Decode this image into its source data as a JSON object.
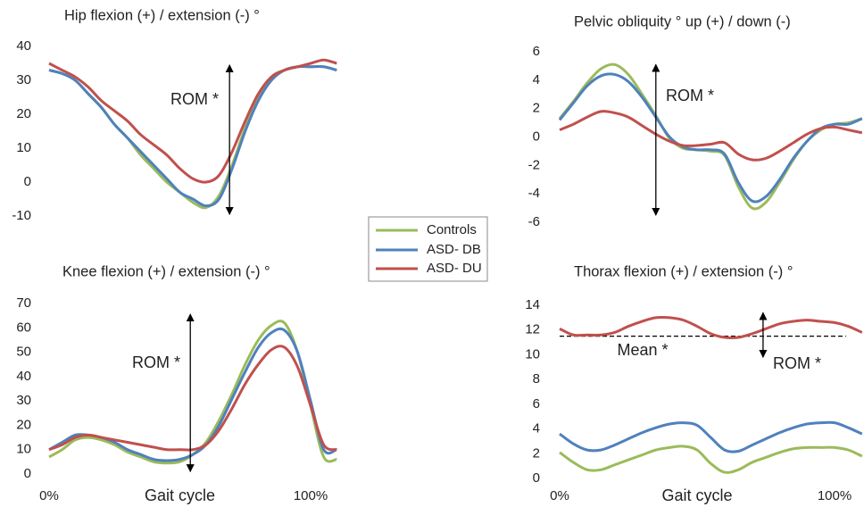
{
  "chart_data": [
    {
      "type": "line",
      "title": "Hip flexion (+) / extension (-) °",
      "x": [
        0,
        5,
        10,
        15,
        20,
        25,
        30,
        35,
        40,
        45,
        50,
        55,
        60,
        65,
        70,
        75,
        80,
        85,
        90,
        95,
        100,
        105,
        110
      ],
      "xlim": [
        0,
        110
      ],
      "ylim": [
        -10,
        40
      ],
      "yticks": [
        -10,
        0,
        10,
        20,
        30,
        40
      ],
      "series": [
        {
          "name": "Controls",
          "color": "#9bbb59",
          "values": [
            33,
            32,
            30,
            26,
            22,
            17,
            13,
            8,
            4,
            0,
            -3,
            -6,
            -7.5,
            -4,
            5,
            16,
            25,
            31,
            33,
            34,
            34,
            34,
            33
          ]
        },
        {
          "name": "ASD- DB",
          "color": "#4f81bd",
          "values": [
            33,
            32,
            30,
            26,
            22,
            17,
            13,
            9,
            5,
            1,
            -3,
            -5,
            -7,
            -5,
            4,
            15,
            24,
            30,
            33,
            34,
            34,
            34,
            33
          ]
        },
        {
          "name": "ASD- DU",
          "color": "#c0504d",
          "values": [
            35,
            33,
            31,
            28,
            24,
            21,
            18,
            14,
            11,
            8,
            4,
            1,
            0,
            2,
            9,
            18,
            26,
            31,
            33,
            34,
            35,
            36,
            35
          ]
        }
      ],
      "annotations": [
        {
          "text": "ROM *",
          "x": 69,
          "range": [
            -9.5,
            34.5
          ]
        }
      ]
    },
    {
      "type": "line",
      "title": "Pelvic obliquity ° up (+) / down (-)",
      "x": [
        0,
        5,
        10,
        15,
        20,
        25,
        30,
        35,
        40,
        45,
        50,
        55,
        60,
        65,
        70,
        75,
        80,
        85,
        90,
        95,
        100,
        105,
        110
      ],
      "xlim": [
        0,
        110
      ],
      "ylim": [
        -6,
        6
      ],
      "yticks": [
        -6,
        -4,
        -2,
        0,
        2,
        4,
        6
      ],
      "series": [
        {
          "name": "Controls",
          "color": "#9bbb59",
          "values": [
            1.3,
            2.5,
            3.8,
            4.8,
            5.1,
            4.4,
            3.0,
            1.5,
            -0.1,
            -0.8,
            -0.9,
            -1.0,
            -1.3,
            -3.5,
            -5.0,
            -4.6,
            -3.2,
            -1.6,
            -0.3,
            0.5,
            0.9,
            1.0,
            1.3
          ]
        },
        {
          "name": "ASD- DB",
          "color": "#4f81bd",
          "values": [
            1.2,
            2.4,
            3.6,
            4.3,
            4.4,
            3.9,
            2.8,
            1.4,
            0.0,
            -0.7,
            -0.9,
            -0.9,
            -1.2,
            -3.2,
            -4.5,
            -4.2,
            -3.0,
            -1.5,
            -0.3,
            0.6,
            0.9,
            0.9,
            1.3
          ]
        },
        {
          "name": "ASD- DU",
          "color": "#c0504d",
          "values": [
            0.5,
            0.9,
            1.4,
            1.8,
            1.7,
            1.4,
            0.8,
            0.2,
            -0.3,
            -0.6,
            -0.6,
            -0.5,
            -0.4,
            -1.2,
            -1.6,
            -1.5,
            -1.0,
            -0.4,
            0.2,
            0.6,
            0.7,
            0.5,
            0.3
          ]
        }
      ],
      "annotations": [
        {
          "text": "ROM *",
          "x": 35,
          "range": [
            -5.5,
            5.1
          ]
        }
      ]
    },
    {
      "type": "line",
      "title": "Knee flexion (+) / extension (-) °",
      "x_label": "Gait cycle",
      "x": [
        0,
        5,
        10,
        15,
        20,
        25,
        30,
        35,
        40,
        45,
        50,
        55,
        60,
        65,
        70,
        75,
        80,
        85,
        90,
        95,
        100,
        105,
        110
      ],
      "xlim": [
        0,
        110
      ],
      "xticks": [
        {
          "value": 0,
          "label": "0%"
        },
        {
          "value": 100,
          "label": "100%"
        }
      ],
      "ylim": [
        0,
        70
      ],
      "yticks": [
        0,
        10,
        20,
        30,
        40,
        50,
        60,
        70
      ],
      "series": [
        {
          "name": "Controls",
          "color": "#9bbb59",
          "values": [
            7,
            10,
            14,
            15,
            14,
            12,
            9,
            7,
            5,
            4.5,
            5,
            8,
            13,
            22,
            33,
            45,
            55,
            61,
            62,
            50,
            28,
            7,
            6
          ]
        },
        {
          "name": "ASD- DB",
          "color": "#4f81bd",
          "values": [
            10,
            13,
            16,
            16,
            15,
            13,
            10,
            8,
            6,
            5.5,
            6,
            8,
            12,
            20,
            31,
            42,
            52,
            58,
            59,
            50,
            30,
            10,
            10
          ]
        },
        {
          "name": "ASD- DU",
          "color": "#c0504d",
          "values": [
            10,
            12,
            15,
            16,
            15,
            14,
            13,
            12,
            11,
            10,
            10,
            10,
            12,
            18,
            27,
            37,
            45,
            51,
            52,
            44,
            28,
            12,
            10
          ]
        }
      ],
      "annotations": [
        {
          "text": "ROM *",
          "x": 54,
          "range": [
            1,
            65.6
          ]
        }
      ]
    },
    {
      "type": "line",
      "title": "Thorax flexion (+) / extension (-) °",
      "x_label": "Gait cycle",
      "x": [
        0,
        5,
        10,
        15,
        20,
        25,
        30,
        35,
        40,
        45,
        50,
        55,
        60,
        65,
        70,
        75,
        80,
        85,
        90,
        95,
        100,
        105,
        110
      ],
      "xlim": [
        0,
        110
      ],
      "xticks": [
        {
          "value": 0,
          "label": "0%"
        },
        {
          "value": 100,
          "label": "100%"
        }
      ],
      "ylim": [
        0,
        14
      ],
      "yticks": [
        0,
        2,
        4,
        6,
        8,
        10,
        12,
        14
      ],
      "series": [
        {
          "name": "Controls",
          "color": "#9bbb59",
          "values": [
            2.1,
            1.3,
            0.7,
            0.7,
            1.1,
            1.5,
            1.9,
            2.3,
            2.5,
            2.6,
            2.3,
            1.2,
            0.5,
            0.7,
            1.3,
            1.7,
            2.1,
            2.4,
            2.5,
            2.5,
            2.5,
            2.3,
            1.8
          ]
        },
        {
          "name": "ASD- DB",
          "color": "#4f81bd",
          "values": [
            3.6,
            2.8,
            2.3,
            2.3,
            2.7,
            3.2,
            3.7,
            4.1,
            4.4,
            4.5,
            4.3,
            3.3,
            2.3,
            2.2,
            2.7,
            3.2,
            3.7,
            4.1,
            4.4,
            4.5,
            4.5,
            4.1,
            3.6
          ]
        },
        {
          "name": "ASD- DU",
          "color": "#c0504d",
          "values": [
            12.1,
            11.6,
            11.6,
            11.6,
            11.8,
            12.3,
            12.7,
            13.0,
            13.0,
            12.8,
            12.3,
            11.7,
            11.4,
            11.4,
            11.7,
            12.1,
            12.5,
            12.7,
            12.8,
            12.7,
            12.6,
            12.3,
            11.8
          ]
        }
      ],
      "mean_line": 11.5,
      "annotations": [
        {
          "text": "ROM *",
          "x": 74,
          "range": [
            9.8,
            13.4
          ]
        },
        {
          "text": "Mean *"
        }
      ]
    }
  ]
}
